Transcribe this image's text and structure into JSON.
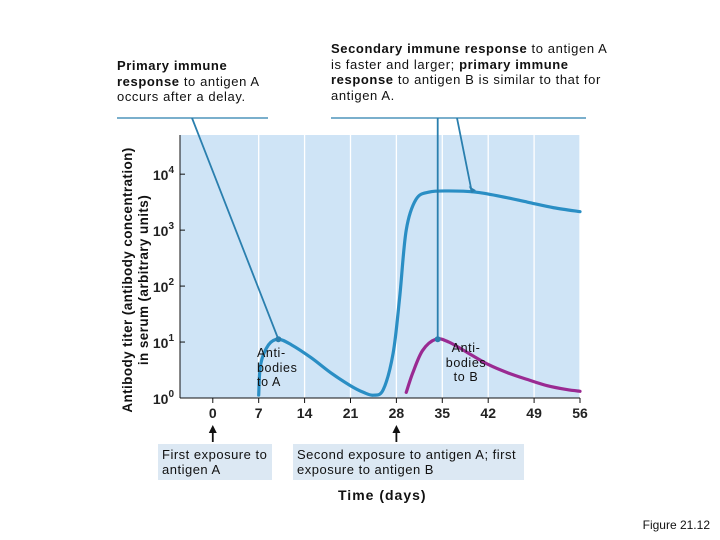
{
  "chart_data": {
    "type": "line",
    "xlabel": "Time (days)",
    "ylabel_line1": "Antibody titer (antibody concentration)",
    "ylabel_line2": "in serum (arbitrary units)",
    "x_ticks": [
      0,
      7,
      14,
      21,
      28,
      35,
      42,
      49,
      56
    ],
    "x_tick_labels": [
      "0",
      "7",
      "14",
      "21",
      "28",
      "35",
      "42",
      "49",
      "56"
    ],
    "y_ticks": [
      0,
      1,
      2,
      3,
      4
    ],
    "y_tick_labels": [
      {
        "base": "10",
        "exp": "0"
      },
      {
        "base": "10",
        "exp": "1"
      },
      {
        "base": "10",
        "exp": "2"
      },
      {
        "base": "10",
        "exp": "3"
      },
      {
        "base": "10",
        "exp": "4"
      }
    ],
    "xlim": [
      -5,
      56
    ],
    "ylim": [
      0,
      4.7
    ],
    "y_scale": "log10",
    "series": [
      {
        "name": "Anti-bodies to A",
        "color": "#2a8ec4",
        "points": [
          [
            7,
            0.05
          ],
          [
            7.3,
            0.6
          ],
          [
            8.5,
            0.95
          ],
          [
            10,
            1.05
          ],
          [
            12,
            0.95
          ],
          [
            15,
            0.72
          ],
          [
            18,
            0.45
          ],
          [
            21,
            0.22
          ],
          [
            23,
            0.1
          ],
          [
            24.5,
            0.05
          ],
          [
            26,
            0.15
          ],
          [
            27.5,
            0.8
          ],
          [
            28.5,
            1.8
          ],
          [
            29.5,
            3.0
          ],
          [
            31,
            3.55
          ],
          [
            33,
            3.68
          ],
          [
            36,
            3.7
          ],
          [
            40,
            3.68
          ],
          [
            44,
            3.6
          ],
          [
            48,
            3.5
          ],
          [
            52,
            3.4
          ],
          [
            56,
            3.33
          ]
        ]
      },
      {
        "name": "Anti-bodies to B",
        "color": "#9a2a92",
        "points": [
          [
            29.5,
            0.1
          ],
          [
            30.5,
            0.45
          ],
          [
            32,
            0.85
          ],
          [
            34,
            1.05
          ],
          [
            36,
            1.0
          ],
          [
            39,
            0.8
          ],
          [
            42,
            0.6
          ],
          [
            45,
            0.45
          ],
          [
            48,
            0.33
          ],
          [
            51,
            0.22
          ],
          [
            54,
            0.15
          ],
          [
            56,
            0.12
          ]
        ]
      }
    ],
    "exposures": [
      {
        "x": 0,
        "label": "First exposure to antigen A"
      },
      {
        "x": 28,
        "label": "Second exposure to antigen A; first exposure to antigen B"
      }
    ]
  },
  "annotations": {
    "primary": {
      "bold": "Primary immune response",
      "rest": " to antigen A occurs after a delay."
    },
    "secondary": {
      "bold": "Secondary immune response",
      "mid": " to antigen A is faster and larger; ",
      "bold2": "primary immune response",
      "rest": " to antigen B is similar to that for antigen A."
    },
    "label_a": "Anti- bodies to A",
    "label_b": "Anti- bodies to B"
  },
  "figure_label": "Figure 21.12"
}
